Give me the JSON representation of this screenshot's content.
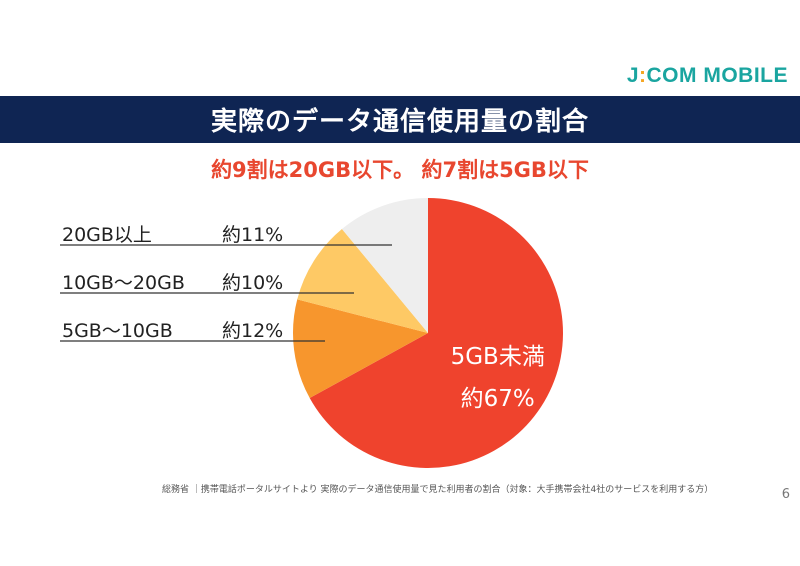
{
  "logo": {
    "prefix": "J",
    "colon": ":",
    "rest": "COM MOBILE",
    "color": "#1aa5a0",
    "colon_color": "#f5a623"
  },
  "header": {
    "title": "実際のデータ通信使用量の割合",
    "bg": "#0f2553"
  },
  "subtitle": {
    "text": "約9割は20GB以下。 約7割は5GB以下",
    "color": "#e8472f"
  },
  "chart_data": {
    "type": "pie",
    "slices": [
      {
        "label": "5GB未満",
        "value": 67,
        "value_text": "約67%",
        "color": "#ef432d"
      },
      {
        "label": "5GB～10GB",
        "value": 12,
        "value_text": "約12%",
        "color": "#f7962d"
      },
      {
        "label": "10GB～20GB",
        "value": 10,
        "value_text": "約10%",
        "color": "#fec965"
      },
      {
        "label": "20GB以上",
        "value": 11,
        "value_text": "約11%",
        "color": "#eeeeee"
      }
    ]
  },
  "source": "総務省 ｜携帯電話ポータルサイトより 実際のデータ通信使用量で見た利用者の割合（対象：大手携帯会社4社のサービスを利用する方）",
  "page_number": "6"
}
